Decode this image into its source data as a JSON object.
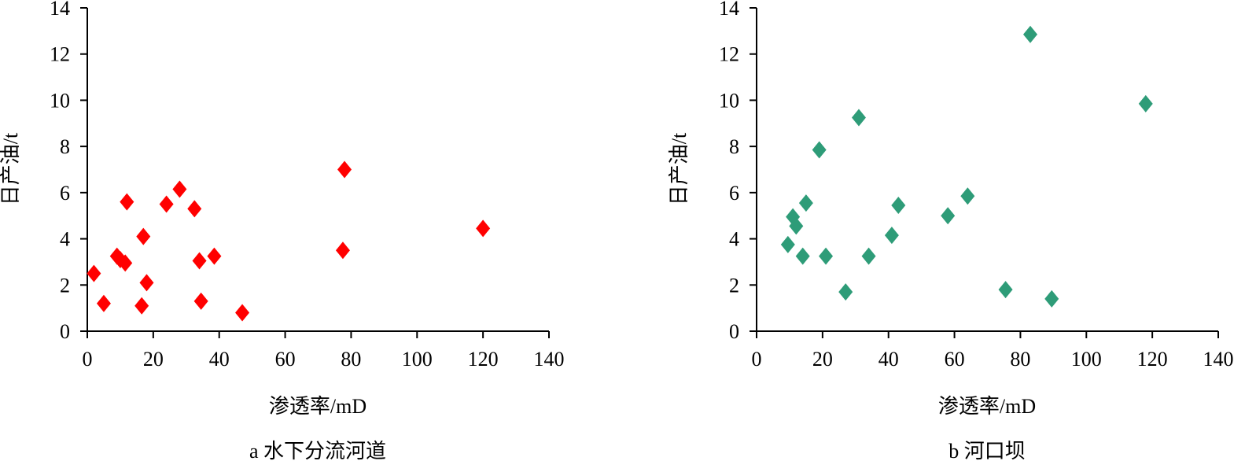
{
  "chart_data": [
    {
      "type": "scatter",
      "caption": "a 水下分流河道",
      "xlabel": "渗透率/mD",
      "ylabel": "日产油/t",
      "xlim": [
        0,
        140
      ],
      "ylim": [
        0,
        14
      ],
      "xticks": [
        0,
        20,
        40,
        60,
        80,
        100,
        120,
        140
      ],
      "yticks": [
        0,
        2,
        4,
        6,
        8,
        10,
        12,
        14
      ],
      "grid": false,
      "marker": "diamond",
      "color": "#ff0000",
      "points": [
        {
          "x": 2,
          "y": 2.5
        },
        {
          "x": 5,
          "y": 1.2
        },
        {
          "x": 9,
          "y": 3.25
        },
        {
          "x": 10,
          "y": 3.1
        },
        {
          "x": 11.5,
          "y": 2.95
        },
        {
          "x": 12,
          "y": 5.6
        },
        {
          "x": 16.5,
          "y": 1.1
        },
        {
          "x": 17,
          "y": 4.1
        },
        {
          "x": 18,
          "y": 2.1
        },
        {
          "x": 24,
          "y": 5.5
        },
        {
          "x": 28,
          "y": 6.15
        },
        {
          "x": 32.5,
          "y": 5.3
        },
        {
          "x": 34,
          "y": 3.05
        },
        {
          "x": 34.5,
          "y": 1.3
        },
        {
          "x": 38.5,
          "y": 3.25
        },
        {
          "x": 47,
          "y": 0.8
        },
        {
          "x": 77.5,
          "y": 3.5
        },
        {
          "x": 78,
          "y": 7.0
        },
        {
          "x": 120,
          "y": 4.45
        }
      ]
    },
    {
      "type": "scatter",
      "caption": "b 河口坝",
      "xlabel": "渗透率/mD",
      "ylabel": "日产油/t",
      "xlim": [
        0,
        140
      ],
      "ylim": [
        0,
        14
      ],
      "xticks": [
        0,
        20,
        40,
        60,
        80,
        100,
        120,
        140
      ],
      "yticks": [
        0,
        2,
        4,
        6,
        8,
        10,
        12,
        14
      ],
      "grid": false,
      "marker": "diamond",
      "color": "#2e9c78",
      "points": [
        {
          "x": 9.5,
          "y": 3.75
        },
        {
          "x": 11,
          "y": 4.95
        },
        {
          "x": 12,
          "y": 4.55
        },
        {
          "x": 14,
          "y": 3.25
        },
        {
          "x": 15,
          "y": 5.55
        },
        {
          "x": 19,
          "y": 7.85
        },
        {
          "x": 21,
          "y": 3.25
        },
        {
          "x": 27,
          "y": 1.7
        },
        {
          "x": 31,
          "y": 9.25
        },
        {
          "x": 34,
          "y": 3.25
        },
        {
          "x": 41,
          "y": 4.15
        },
        {
          "x": 43,
          "y": 5.45
        },
        {
          "x": 58,
          "y": 5.0
        },
        {
          "x": 64,
          "y": 5.85
        },
        {
          "x": 75.5,
          "y": 1.8
        },
        {
          "x": 83,
          "y": 12.85
        },
        {
          "x": 89.5,
          "y": 1.4
        },
        {
          "x": 118,
          "y": 9.85
        }
      ]
    }
  ]
}
